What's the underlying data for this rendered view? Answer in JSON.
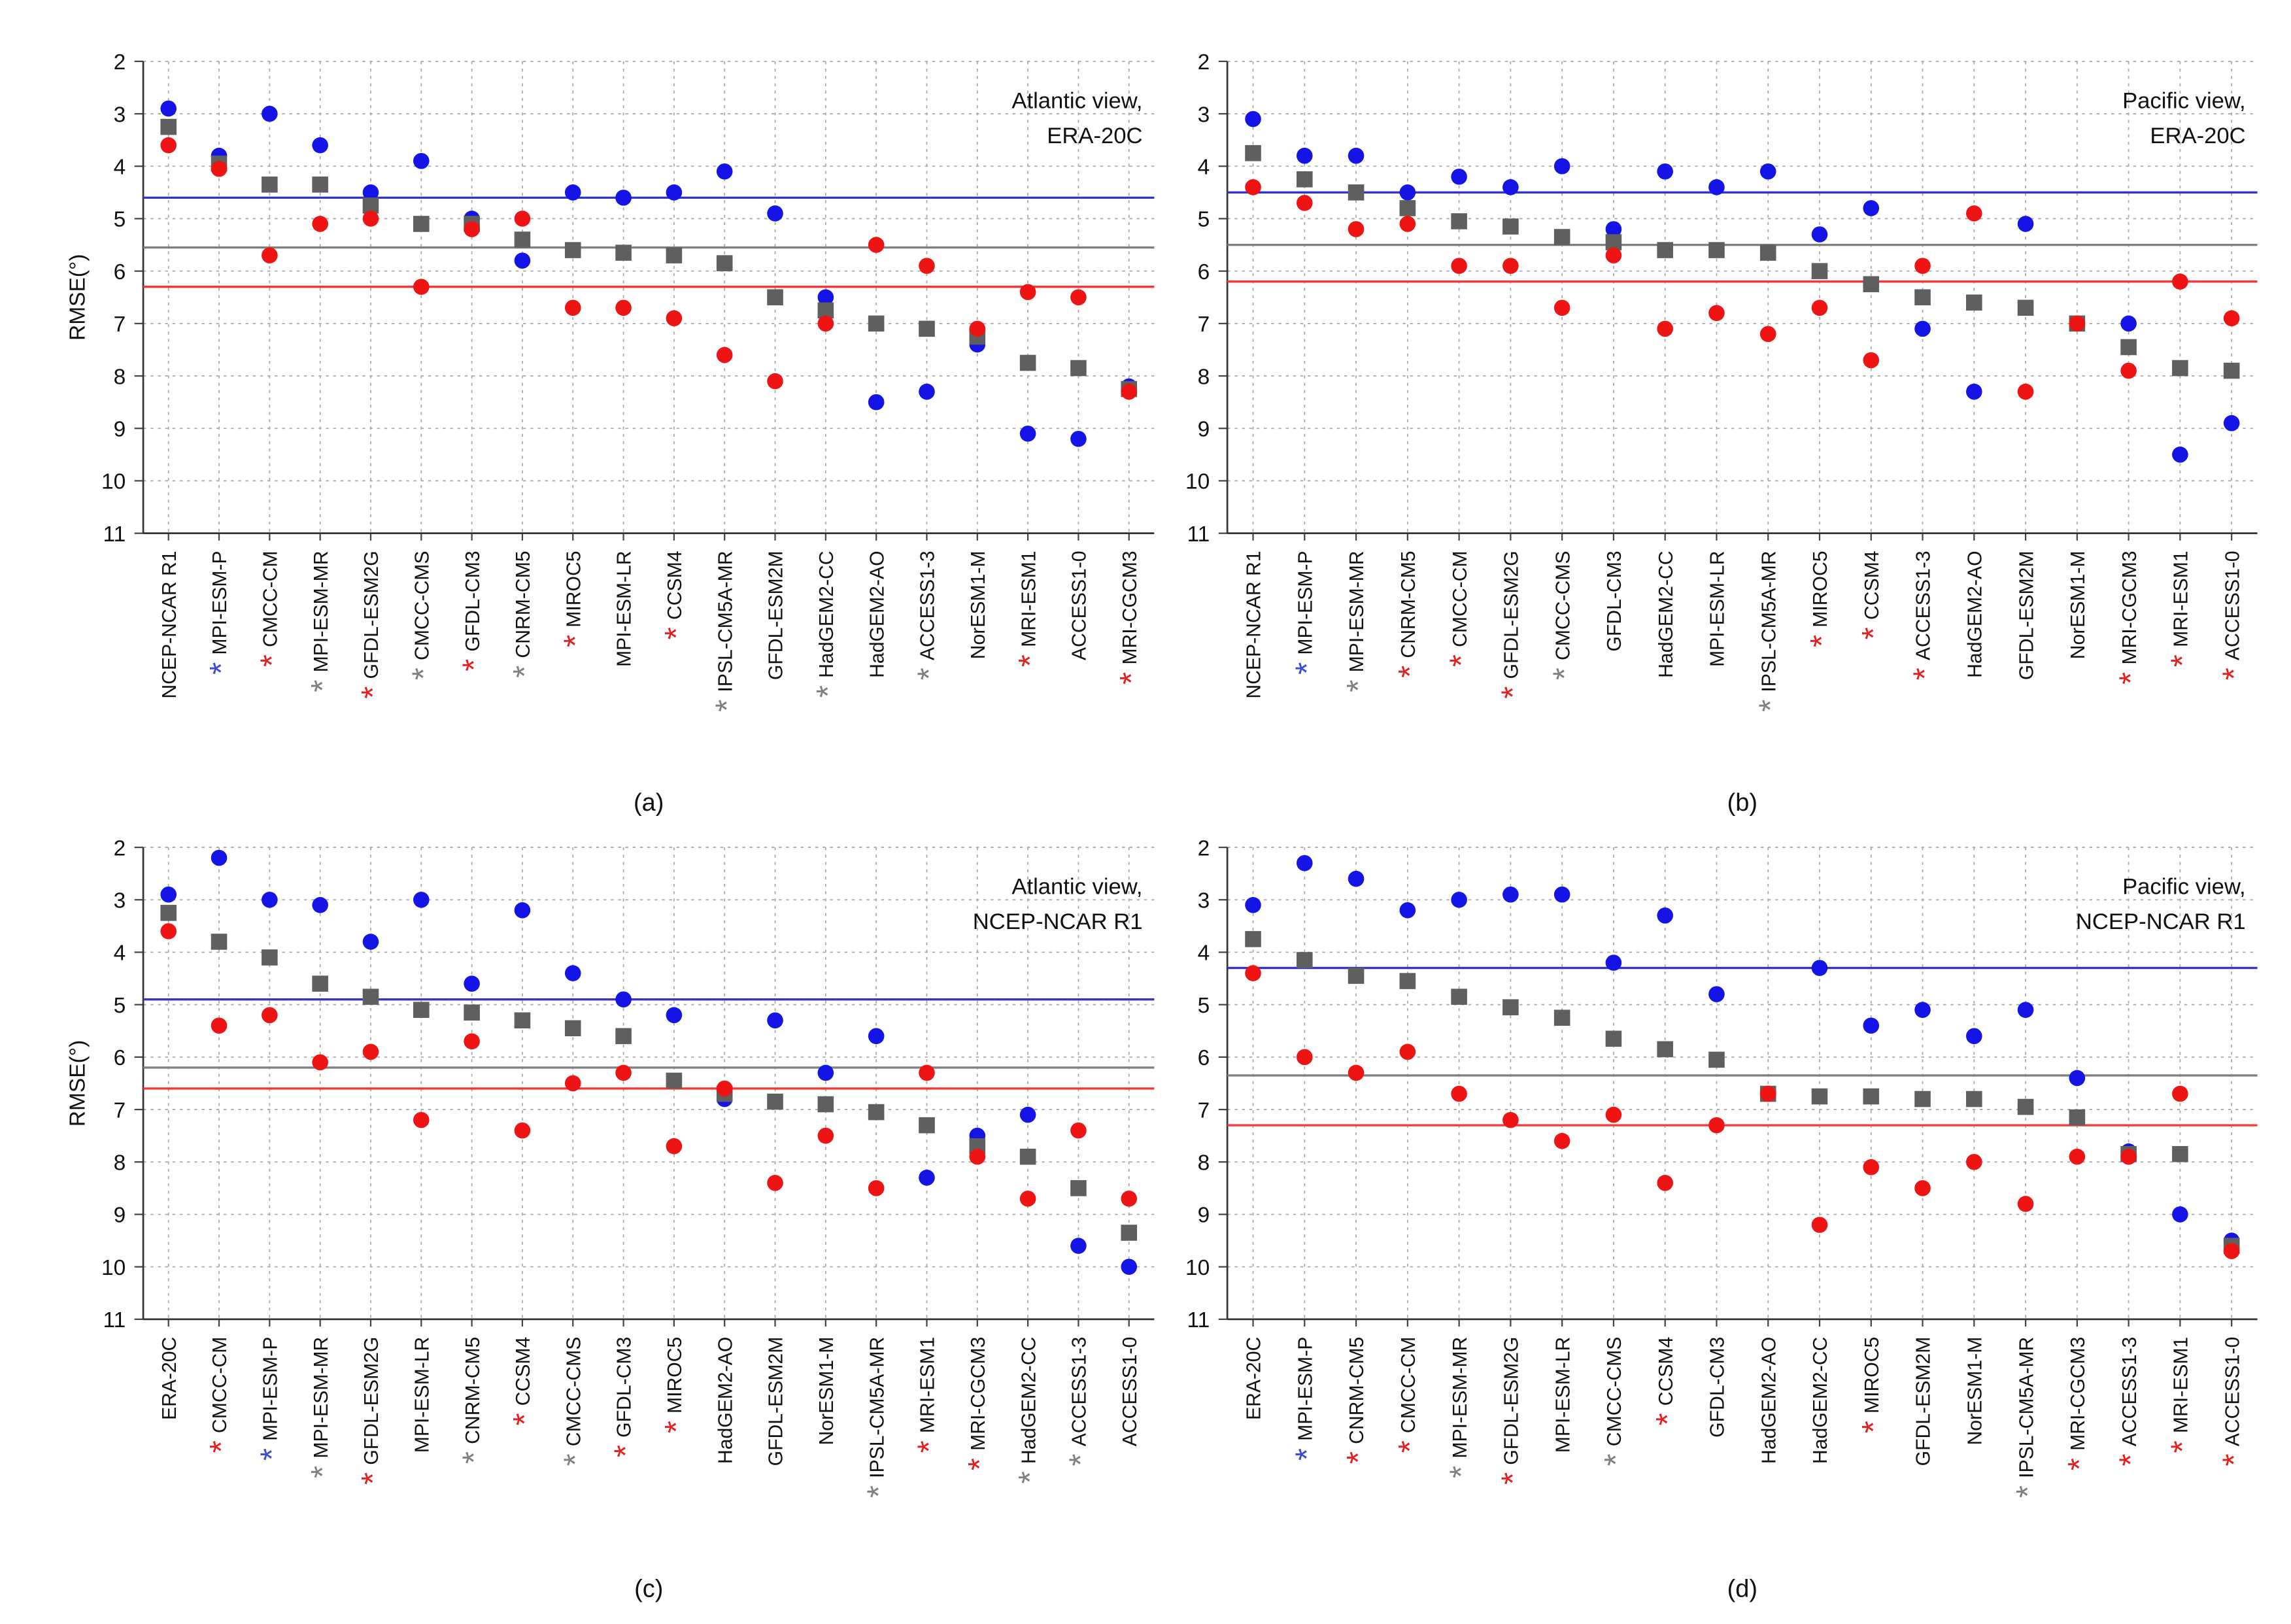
{
  "chart_data": [
    {
      "type": "dot",
      "label": "(a)",
      "ylabel": "RMSE(°)",
      "annotation": [
        "Atlantic view,",
        "ERA-20C"
      ],
      "star_symbol": "*",
      "categories": [
        "NCEP-NCAR R1",
        "MPI-ESM-P",
        "CMCC-CM",
        "MPI-ESM-MR",
        "GFDL-ESM2G",
        "CMCC-CMS",
        "GFDL-CM3",
        "CNRM-CM5",
        "MIROC5",
        "MPI-ESM-LR",
        "CCSM4",
        "IPSL-CM5A-MR",
        "GFDL-ESM2M",
        "HadGEM2-CC",
        "HadGEM2-AO",
        "ACCESS1-3",
        "NorESM1-M",
        "MRI-ESM1",
        "ACCESS1-0",
        "MRI-CGCM3"
      ],
      "star_colors": [
        null,
        "#3a4ccf",
        "#e32020",
        "#808080",
        "#e32020",
        "#808080",
        "#e32020",
        "#808080",
        "#e32020",
        null,
        "#e32020",
        "#808080",
        null,
        "#808080",
        null,
        "#808080",
        null,
        "#e32020",
        null,
        "#e32020"
      ],
      "series": [
        {
          "color": "#1414e6",
          "marker": "circle",
          "values": [
            2.9,
            3.8,
            3.0,
            3.6,
            4.5,
            3.9,
            5.0,
            5.8,
            4.5,
            4.6,
            4.5,
            4.1,
            4.9,
            6.5,
            8.5,
            8.3,
            7.4,
            9.1,
            9.2,
            8.2
          ]
        },
        {
          "color": "#5f5f5f",
          "marker": "square",
          "values": [
            3.25,
            3.95,
            4.35,
            4.35,
            4.75,
            5.1,
            5.1,
            5.4,
            5.6,
            5.65,
            5.7,
            5.85,
            6.5,
            6.75,
            7.0,
            7.1,
            7.25,
            7.75,
            7.85,
            8.25
          ]
        },
        {
          "color": "#ee1414",
          "marker": "circle",
          "values": [
            3.6,
            4.05,
            5.7,
            5.1,
            5.0,
            6.3,
            5.2,
            5.0,
            6.7,
            6.7,
            6.9,
            7.6,
            8.1,
            7.0,
            5.5,
            5.9,
            7.1,
            6.4,
            6.5,
            8.3
          ]
        }
      ],
      "hlines": [
        {
          "value": 4.6,
          "color": "#3333cc"
        },
        {
          "value": 5.55,
          "color": "#808080"
        },
        {
          "value": 6.3,
          "color": "#ff3333"
        }
      ],
      "ylim": [
        2,
        11
      ],
      "y_inverted": true,
      "yticks": [
        2,
        3,
        4,
        5,
        6,
        7,
        8,
        9,
        10,
        11
      ],
      "grid": true
    },
    {
      "type": "dot",
      "label": "(b)",
      "annotation": [
        "Pacific view,",
        "ERA-20C"
      ],
      "star_symbol": "*",
      "categories": [
        "NCEP-NCAR R1",
        "MPI-ESM-P",
        "MPI-ESM-MR",
        "CNRM-CM5",
        "CMCC-CM",
        "GFDL-ESM2G",
        "CMCC-CMS",
        "GFDL-CM3",
        "HadGEM2-CC",
        "MPI-ESM-LR",
        "IPSL-CM5A-MR",
        "MIROC5",
        "CCSM4",
        "ACCESS1-3",
        "HadGEM2-AO",
        "GFDL-ESM2M",
        "NorESM1-M",
        "MRI-CGCM3",
        "MRI-ESM1",
        "ACCESS1-0"
      ],
      "star_colors": [
        null,
        "#3a4ccf",
        "#808080",
        "#e32020",
        "#e32020",
        "#e32020",
        "#808080",
        null,
        null,
        null,
        "#808080",
        "#e32020",
        "#e32020",
        "#e32020",
        null,
        null,
        null,
        "#e32020",
        "#e32020",
        "#e32020"
      ],
      "series": [
        {
          "color": "#1414e6",
          "marker": "circle",
          "values": [
            3.1,
            3.8,
            3.8,
            4.5,
            4.2,
            4.4,
            4.0,
            5.2,
            4.1,
            4.4,
            4.1,
            5.3,
            4.8,
            7.1,
            8.3,
            5.1,
            7.0,
            7.0,
            9.5,
            8.9
          ]
        },
        {
          "color": "#5f5f5f",
          "marker": "square",
          "values": [
            3.75,
            4.25,
            4.5,
            4.8,
            5.05,
            5.15,
            5.35,
            5.45,
            5.6,
            5.6,
            5.65,
            6.0,
            6.25,
            6.5,
            6.6,
            6.7,
            7.0,
            7.45,
            7.85,
            7.9
          ]
        },
        {
          "color": "#ee1414",
          "marker": "circle",
          "values": [
            4.4,
            4.7,
            5.2,
            5.1,
            5.9,
            5.9,
            6.7,
            5.7,
            7.1,
            6.8,
            7.2,
            6.7,
            7.7,
            5.9,
            4.9,
            8.3,
            7.0,
            7.9,
            6.2,
            6.9
          ]
        }
      ],
      "hlines": [
        {
          "value": 4.5,
          "color": "#3333cc"
        },
        {
          "value": 5.5,
          "color": "#808080"
        },
        {
          "value": 6.2,
          "color": "#ff3333"
        }
      ],
      "ylim": [
        2,
        11
      ],
      "y_inverted": true,
      "yticks": [
        2,
        3,
        4,
        5,
        6,
        7,
        8,
        9,
        10,
        11
      ],
      "grid": true
    },
    {
      "type": "dot",
      "label": "(c)",
      "ylabel": "RMSE(°)",
      "annotation": [
        "Atlantic view,",
        "NCEP-NCAR R1"
      ],
      "star_symbol": "*",
      "categories": [
        "ERA-20C",
        "CMCC-CM",
        "MPI-ESM-P",
        "MPI-ESM-MR",
        "GFDL-ESM2G",
        "MPI-ESM-LR",
        "CNRM-CM5",
        "CCSM4",
        "CMCC-CMS",
        "GFDL-CM3",
        "MIROC5",
        "HadGEM2-AO",
        "GFDL-ESM2M",
        "NorESM1-M",
        "IPSL-CM5A-MR",
        "MRI-ESM1",
        "MRI-CGCM3",
        "HadGEM2-CC",
        "ACCESS1-3",
        "ACCESS1-0"
      ],
      "star_colors": [
        null,
        "#e32020",
        "#3a4ccf",
        "#808080",
        "#e32020",
        null,
        "#808080",
        "#e32020",
        "#808080",
        "#e32020",
        "#e32020",
        null,
        null,
        null,
        "#808080",
        "#e32020",
        "#e32020",
        "#808080",
        "#808080",
        null
      ],
      "series": [
        {
          "color": "#1414e6",
          "marker": "circle",
          "values": [
            2.9,
            2.2,
            3.0,
            3.1,
            3.8,
            3.0,
            4.6,
            3.2,
            4.4,
            4.9,
            5.2,
            6.8,
            5.3,
            6.3,
            5.6,
            8.3,
            7.5,
            7.1,
            9.6,
            10.0
          ]
        },
        {
          "color": "#5f5f5f",
          "marker": "square",
          "values": [
            3.25,
            3.8,
            4.1,
            4.6,
            4.85,
            5.1,
            5.15,
            5.3,
            5.45,
            5.6,
            6.45,
            6.7,
            6.85,
            6.9,
            7.05,
            7.3,
            7.7,
            7.9,
            8.5,
            9.35
          ]
        },
        {
          "color": "#ee1414",
          "marker": "circle",
          "values": [
            3.6,
            5.4,
            5.2,
            6.1,
            5.9,
            7.2,
            5.7,
            7.4,
            6.5,
            6.3,
            7.7,
            6.6,
            8.4,
            7.5,
            8.5,
            6.3,
            7.9,
            8.7,
            7.4,
            8.7
          ]
        }
      ],
      "hlines": [
        {
          "value": 4.9,
          "color": "#3333cc"
        },
        {
          "value": 6.2,
          "color": "#808080"
        },
        {
          "value": 6.6,
          "color": "#ff3333"
        }
      ],
      "ylim": [
        2,
        11
      ],
      "y_inverted": true,
      "yticks": [
        2,
        3,
        4,
        5,
        6,
        7,
        8,
        9,
        10,
        11
      ],
      "grid": true
    },
    {
      "type": "dot",
      "label": "(d)",
      "annotation": [
        "Pacific view,",
        "NCEP-NCAR R1"
      ],
      "star_symbol": "*",
      "categories": [
        "ERA-20C",
        "MPI-ESM-P",
        "CNRM-CM5",
        "CMCC-CM",
        "MPI-ESM-MR",
        "GFDL-ESM2G",
        "MPI-ESM-LR",
        "CMCC-CMS",
        "CCSM4",
        "GFDL-CM3",
        "HadGEM2-AO",
        "HadGEM2-CC",
        "MIROC5",
        "GFDL-ESM2M",
        "NorESM1-M",
        "IPSL-CM5A-MR",
        "MRI-CGCM3",
        "ACCESS1-3",
        "MRI-ESM1",
        "ACCESS1-0"
      ],
      "star_colors": [
        null,
        "#3a4ccf",
        "#e32020",
        "#e32020",
        "#808080",
        "#e32020",
        null,
        "#808080",
        "#e32020",
        null,
        null,
        null,
        "#e32020",
        null,
        null,
        "#808080",
        "#e32020",
        "#e32020",
        "#e32020",
        "#e32020"
      ],
      "series": [
        {
          "color": "#1414e6",
          "marker": "circle",
          "values": [
            3.1,
            2.3,
            2.6,
            3.2,
            3.0,
            2.9,
            2.9,
            4.2,
            3.3,
            4.8,
            6.7,
            4.3,
            5.4,
            5.1,
            5.6,
            5.1,
            6.4,
            7.8,
            9.0,
            9.5
          ]
        },
        {
          "color": "#5f5f5f",
          "marker": "square",
          "values": [
            3.75,
            4.15,
            4.45,
            4.55,
            4.85,
            5.05,
            5.25,
            5.65,
            5.85,
            6.05,
            6.7,
            6.75,
            6.75,
            6.8,
            6.8,
            6.95,
            7.15,
            7.85,
            7.85,
            9.6
          ]
        },
        {
          "color": "#ee1414",
          "marker": "circle",
          "values": [
            4.4,
            6.0,
            6.3,
            5.9,
            6.7,
            7.2,
            7.6,
            7.1,
            8.4,
            7.3,
            6.7,
            9.2,
            8.1,
            8.5,
            8.0,
            8.8,
            7.9,
            7.9,
            6.7,
            9.7
          ]
        }
      ],
      "hlines": [
        {
          "value": 4.3,
          "color": "#3333cc"
        },
        {
          "value": 6.35,
          "color": "#808080"
        },
        {
          "value": 7.3,
          "color": "#ff3333"
        }
      ],
      "ylim": [
        2,
        11
      ],
      "y_inverted": true,
      "yticks": [
        2,
        3,
        4,
        5,
        6,
        7,
        8,
        9,
        10,
        11
      ],
      "grid": true
    }
  ]
}
